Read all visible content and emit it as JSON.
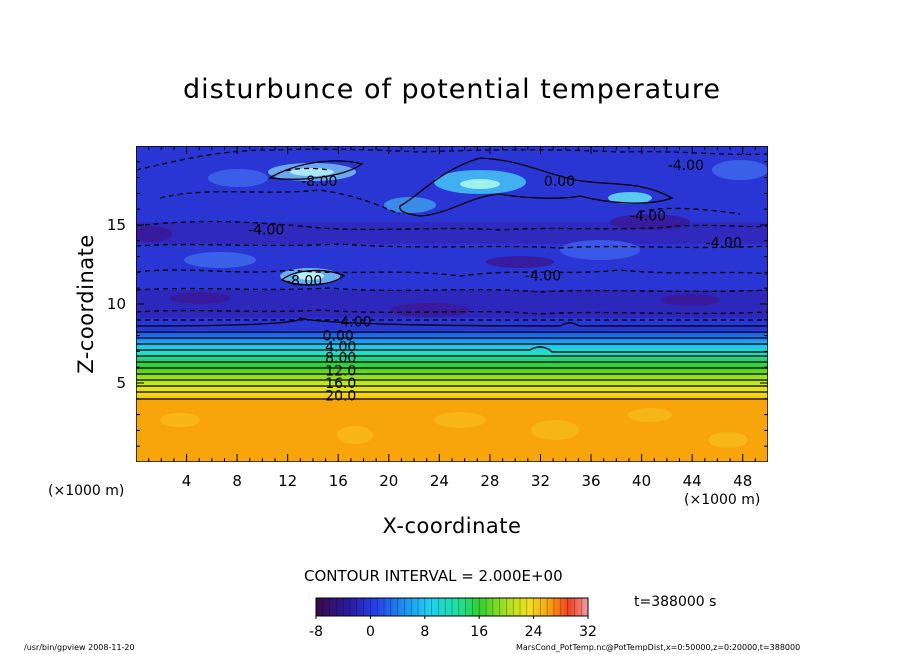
{
  "chart_data": {
    "type": "heatmap",
    "title": "disturbunce of potential temperature",
    "xlabel": "X-coordinate",
    "ylabel": "Z-coordinate",
    "x_unit_label": "(×1000 m)",
    "x_ticks": [
      4,
      8,
      12,
      16,
      20,
      24,
      28,
      32,
      36,
      40,
      44,
      48
    ],
    "y_ticks": [
      5,
      10,
      15
    ],
    "xlim": [
      0,
      50
    ],
    "ylim": [
      0,
      20
    ],
    "contour_interval_text": "CONTOUR INTERVAL = 2.000E+00",
    "colorbar": {
      "min": -8,
      "max": 32,
      "ticks": [
        -8,
        0,
        8,
        16,
        24,
        32
      ]
    },
    "contour_labels": [
      {
        "text": "0.00",
        "x": 33.5,
        "z": 17.8
      },
      {
        "text": "-4.00",
        "x": 43.5,
        "z": 18.8
      },
      {
        "text": "-8.00",
        "x": 14.5,
        "z": 17.8
      },
      {
        "text": "-4.00",
        "x": 40.5,
        "z": 15.6
      },
      {
        "text": "-4.00",
        "x": 10.3,
        "z": 14.7
      },
      {
        "text": "-4.00",
        "x": 46.5,
        "z": 13.9
      },
      {
        "text": "-8.00",
        "x": 13.3,
        "z": 11.5
      },
      {
        "text": "-4.00",
        "x": 32.2,
        "z": 11.8
      },
      {
        "text": "-4.00",
        "x": 17.2,
        "z": 8.9
      },
      {
        "text": "0.00",
        "x": 16.0,
        "z": 8.0
      },
      {
        "text": "4.00",
        "x": 16.2,
        "z": 7.3
      },
      {
        "text": "8.00",
        "x": 16.2,
        "z": 6.6
      },
      {
        "text": "12.0",
        "x": 16.2,
        "z": 5.8
      },
      {
        "text": "16.0",
        "x": 16.2,
        "z": 5.0
      },
      {
        "text": "20.0",
        "x": 16.2,
        "z": 4.2
      }
    ],
    "field_summary": [
      {
        "z_range": [
          0,
          4.0
        ],
        "value": 23,
        "description": "uniform warm layer"
      },
      {
        "z_range": [
          4.0,
          8.5
        ],
        "value_range": [
          20,
          0
        ],
        "description": "stratified transition"
      },
      {
        "z_range": [
          8.5,
          20
        ],
        "value_range": [
          -8,
          0
        ],
        "description": "negative disturbance with embedded cells"
      }
    ]
  },
  "time_label": "t=388000 s",
  "footer": {
    "left": "/usr/bin/gpview  2008-11-20",
    "right": "MarsCond_PotTemp.nc@PotTempDist,x=0:50000,z=0:20000,t=388000"
  },
  "colors": {
    "warm_layer": "#f7a50a",
    "deep_blue": "#2b37d6",
    "cold_cell": "#3a1a99"
  }
}
